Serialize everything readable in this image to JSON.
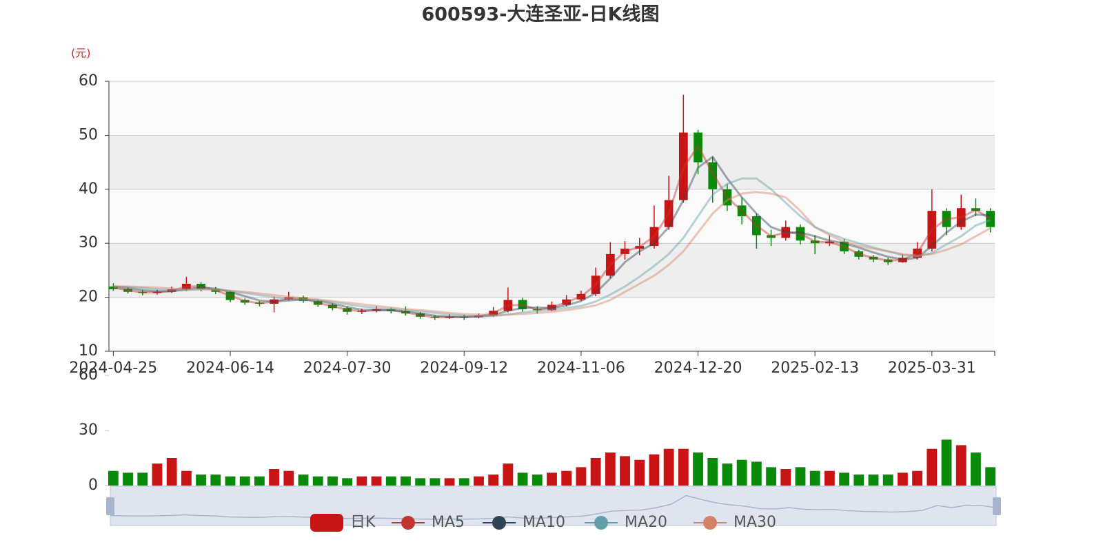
{
  "chart_data": [
    {
      "type": "candlestick",
      "title": "600593-大连圣亚-日K线图",
      "y_unit": "(元)",
      "categories": [
        "2024-04-25",
        null,
        null,
        null,
        null,
        null,
        null,
        null,
        "2024-06-14",
        null,
        null,
        null,
        null,
        null,
        null,
        null,
        "2024-07-30",
        null,
        null,
        null,
        null,
        null,
        null,
        null,
        "2024-09-12",
        null,
        null,
        null,
        null,
        null,
        null,
        null,
        "2024-11-06",
        null,
        null,
        null,
        null,
        null,
        null,
        null,
        "2024-12-20",
        null,
        null,
        null,
        null,
        null,
        null,
        null,
        "2025-02-13",
        null,
        null,
        null,
        null,
        null,
        null,
        null,
        "2025-03-31",
        null,
        null,
        null,
        null
      ],
      "ylim": [
        10,
        60
      ],
      "yticks": [
        10,
        20,
        30,
        40,
        50,
        60
      ],
      "grid": true,
      "band_colors": [
        "#fafafa",
        "#eeeeee"
      ],
      "up_color": "#c81414",
      "down_color": "#0a8a0a",
      "series": [
        {
          "name": "日K",
          "color": "#c23531",
          "values": [
            [
              22,
              21.5,
              21.2,
              22.6
            ],
            [
              21.5,
              21,
              20.7,
              21.8
            ],
            [
              21,
              20.8,
              20.4,
              21.3
            ],
            [
              20.8,
              21,
              20.5,
              21.4
            ],
            [
              21,
              21.5,
              20.8,
              22
            ],
            [
              21.5,
              22.5,
              21.2,
              23.8
            ],
            [
              22.5,
              21.5,
              21.1,
              22.8
            ],
            [
              21.5,
              21,
              20.6,
              21.9
            ],
            [
              21,
              19.5,
              19.1,
              21.2
            ],
            [
              19.5,
              19,
              18.6,
              19.8
            ],
            [
              19,
              18.8,
              18.3,
              19.3
            ],
            [
              18.8,
              19.6,
              17.2,
              20.1
            ],
            [
              19.6,
              20,
              19.4,
              21
            ],
            [
              20,
              19.3,
              19,
              20.3
            ],
            [
              19.3,
              18.6,
              18.2,
              19.6
            ],
            [
              18.6,
              18,
              17.6,
              18.9
            ],
            [
              18,
              17.3,
              16.8,
              18.3
            ],
            [
              17.3,
              17.5,
              16.9,
              17.9
            ],
            [
              17.5,
              17.8,
              17.2,
              18.4
            ],
            [
              17.8,
              17.4,
              17,
              18.1
            ],
            [
              17.4,
              17,
              16.6,
              18.3
            ],
            [
              17,
              16.4,
              16,
              17.3
            ],
            [
              16.4,
              16.2,
              15.8,
              16.7
            ],
            [
              16.2,
              16.4,
              16,
              16.9
            ],
            [
              16.4,
              16.3,
              15.8,
              16.8
            ],
            [
              16.3,
              16.6,
              16.1,
              17
            ],
            [
              16.6,
              17.5,
              16.4,
              18.2
            ],
            [
              17.5,
              19.5,
              17.2,
              21.8
            ],
            [
              19.5,
              17.8,
              17.3,
              19.9
            ],
            [
              17.8,
              17.6,
              17,
              18.3
            ],
            [
              17.6,
              18.6,
              17.4,
              19.2
            ],
            [
              18.6,
              19.6,
              18.3,
              20.4
            ],
            [
              19.6,
              20.6,
              19.3,
              21.2
            ],
            [
              20.6,
              24,
              20.2,
              25.5
            ],
            [
              24,
              28,
              23.5,
              30.2
            ],
            [
              28,
              29,
              27,
              30.4
            ],
            [
              29,
              29.5,
              27.8,
              31
            ],
            [
              29.5,
              33,
              29,
              37
            ],
            [
              33,
              38,
              32.5,
              42.5
            ],
            [
              38,
              50.5,
              37.5,
              57.5
            ],
            [
              50.5,
              45,
              42.8,
              51
            ],
            [
              45,
              40,
              37.5,
              46
            ],
            [
              40,
              37,
              36,
              41
            ],
            [
              37,
              35,
              33.5,
              38.5
            ],
            [
              35,
              31.5,
              29,
              35.5
            ],
            [
              31.5,
              31,
              29.5,
              32.5
            ],
            [
              31,
              33,
              30.5,
              34.2
            ],
            [
              33,
              30.5,
              29.8,
              33.5
            ],
            [
              30.5,
              30,
              28,
              31.5
            ],
            [
              30,
              30.3,
              29.5,
              31.5
            ],
            [
              30.3,
              28.5,
              28,
              30.8
            ],
            [
              28.5,
              27.5,
              27,
              28.8
            ],
            [
              27.5,
              27,
              26.5,
              27.8
            ],
            [
              27,
              26.5,
              26,
              27.3
            ],
            [
              26.5,
              27.3,
              26.4,
              28
            ],
            [
              27.3,
              29,
              27,
              30.2
            ],
            [
              29,
              36,
              28.5,
              40
            ],
            [
              36,
              33,
              31.5,
              36.5
            ],
            [
              33,
              36.5,
              32.5,
              39
            ],
            [
              36.5,
              36,
              35,
              38.3
            ],
            [
              36,
              33,
              32,
              36.5
            ]
          ]
        },
        {
          "name": "MA5",
          "color": "#c23531",
          "values": [
            21.8,
            21.3,
            20.9,
            20.9,
            21.2,
            22,
            22,
            21.3,
            20.3,
            19.3,
            18.9,
            19.2,
            19.8,
            19.7,
            19,
            18.3,
            17.7,
            17.4,
            17.6,
            17.6,
            17.2,
            16.7,
            16.3,
            16.3,
            16.4,
            16.5,
            17,
            18.5,
            18.6,
            17.7,
            18.1,
            19.1,
            20.1,
            22.3,
            26,
            28.5,
            29.3,
            31.3,
            35.5,
            44,
            48,
            43,
            38.5,
            36,
            33.3,
            31.3,
            32,
            31.8,
            30.3,
            30.2,
            29.4,
            28,
            27.3,
            26.8,
            26.9,
            28.2,
            32.5,
            34.5,
            34.8,
            36.2,
            34.5
          ]
        },
        {
          "name": "MA10",
          "color": "#2f4554",
          "values": [
            22,
            21.7,
            21.3,
            21.1,
            21.1,
            21.5,
            21.8,
            21.6,
            21,
            20.2,
            19.4,
            19.2,
            19.4,
            19.6,
            19.4,
            18.8,
            18.2,
            17.7,
            17.6,
            17.6,
            17.4,
            17,
            16.6,
            16.4,
            16.3,
            16.4,
            16.7,
            17.5,
            18,
            18.1,
            18,
            18.5,
            19.3,
            20.8,
            23.5,
            26.5,
            28.5,
            30,
            33,
            38,
            44,
            46,
            42,
            38.5,
            35.5,
            33,
            32,
            32,
            31.3,
            30.5,
            30,
            29.2,
            28.3,
            27.5,
            27,
            27.3,
            29.5,
            32,
            34,
            35.3,
            35.2
          ]
        },
        {
          "name": "MA20",
          "color": "#61a0a8",
          "values": [
            22,
            21.9,
            21.7,
            21.5,
            21.3,
            21.3,
            21.5,
            21.5,
            21.2,
            20.8,
            20.4,
            20,
            19.7,
            19.5,
            19.4,
            19.1,
            18.7,
            18.3,
            18,
            17.8,
            17.6,
            17.4,
            17.1,
            16.8,
            16.6,
            16.5,
            16.5,
            16.8,
            17.2,
            17.5,
            17.7,
            18,
            18.4,
            19.2,
            20.5,
            22,
            23.8,
            25.8,
            28,
            31,
            35,
            39,
            41,
            42,
            42,
            40,
            37.5,
            35,
            33,
            31.8,
            30.8,
            30,
            29.2,
            28.5,
            27.8,
            27.6,
            28.2,
            29.8,
            31.3,
            33.3,
            34.3
          ]
        },
        {
          "name": "MA30",
          "color": "#d48265",
          "values": [
            22,
            22,
            21.9,
            21.8,
            21.6,
            21.5,
            21.5,
            21.4,
            21.2,
            21,
            20.7,
            20.4,
            20.1,
            19.8,
            19.6,
            19.3,
            19,
            18.7,
            18.4,
            18.1,
            17.8,
            17.6,
            17.4,
            17.1,
            16.9,
            16.8,
            16.7,
            16.8,
            16.9,
            17.1,
            17.3,
            17.6,
            18,
            18.5,
            19.5,
            21,
            22.5,
            24,
            26,
            28.5,
            32,
            35.5,
            38,
            39.2,
            39.5,
            39.2,
            38.5,
            36,
            33,
            31.5,
            30.3,
            29.5,
            29,
            28.5,
            28,
            27.7,
            28,
            28.8,
            29.8,
            31.3,
            32.8
          ]
        }
      ]
    },
    {
      "type": "bar",
      "ylim": [
        0,
        60
      ],
      "yticks": [
        0,
        30,
        60
      ],
      "values": [
        8,
        7,
        7,
        12,
        15,
        8,
        6,
        6,
        5,
        5,
        5,
        9,
        8,
        6,
        5,
        5,
        4,
        5,
        5,
        5,
        5,
        4,
        4,
        4,
        4,
        5,
        6,
        12,
        7,
        6,
        7,
        8,
        10,
        15,
        18,
        16,
        14,
        17,
        20,
        20,
        18,
        15,
        12,
        14,
        13,
        10,
        9,
        10,
        8,
        8,
        7,
        6,
        6,
        6,
        7,
        8,
        20,
        25,
        22,
        18,
        10
      ]
    }
  ]
}
